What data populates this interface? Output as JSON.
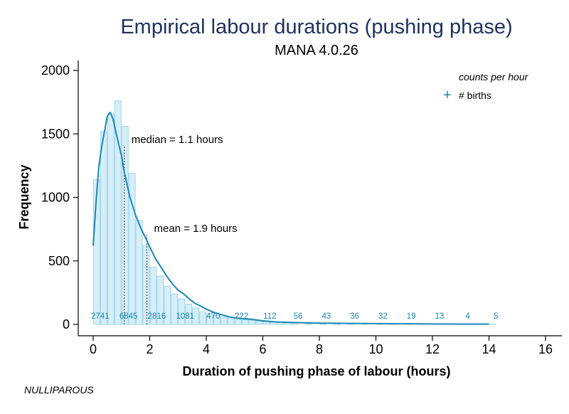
{
  "chart_data": {
    "type": "bar",
    "title": "Empirical labour durations (pushing phase)",
    "subtitle": "MANA 4.0.26",
    "xlabel": "Duration of pushing phase of labour (hours)",
    "ylabel": "Frequency",
    "xlim": [
      0,
      16
    ],
    "ylim": [
      0,
      2000
    ],
    "xticks": [
      0,
      2,
      4,
      6,
      8,
      10,
      12,
      14,
      16
    ],
    "yticks": [
      0,
      500,
      1000,
      1500,
      2000
    ],
    "grid": false,
    "legend": {
      "placement": "top-right",
      "title": "counts per hour",
      "entries": [
        {
          "marker": "+",
          "label": "# births"
        }
      ]
    },
    "histogram": {
      "bin_width": 0.25,
      "bin_starts": [
        0,
        0.25,
        0.5,
        0.75,
        1.0,
        1.25,
        1.5,
        1.75,
        2.0,
        2.25,
        2.5,
        2.75,
        3.0,
        3.25,
        3.5,
        3.75,
        4.0,
        4.25,
        4.5,
        4.75,
        5.0,
        5.25,
        5.5,
        5.75,
        6.0,
        6.25,
        6.5,
        6.75,
        7.0,
        7.5,
        8.0,
        8.5,
        9.0,
        9.5,
        10.0,
        10.5,
        11.0,
        11.5,
        12.0,
        12.5,
        13.0,
        13.5,
        14.0
      ],
      "values": [
        1140,
        1520,
        1660,
        1760,
        1560,
        1190,
        820,
        620,
        450,
        380,
        300,
        240,
        200,
        160,
        130,
        100,
        85,
        70,
        60,
        50,
        40,
        35,
        30,
        25,
        20,
        18,
        15,
        12,
        10,
        9,
        8,
        7,
        6,
        6,
        5,
        5,
        4,
        4,
        3,
        3,
        3,
        2,
        2
      ]
    },
    "series": [
      {
        "name": "density",
        "type": "line",
        "x": [
          0,
          0.1,
          0.2,
          0.3,
          0.4,
          0.5,
          0.6,
          0.7,
          0.8,
          0.9,
          1.0,
          1.1,
          1.2,
          1.3,
          1.5,
          1.7,
          1.9,
          2.0,
          2.2,
          2.4,
          2.6,
          2.8,
          3.0,
          3.2,
          3.4,
          3.6,
          3.8,
          4.0,
          4.2,
          4.4,
          4.6,
          4.8,
          5.0,
          5.3,
          5.6,
          6.0,
          6.3,
          6.6,
          7.0,
          7.5,
          8.0,
          8.5,
          9.0,
          9.5,
          10.0,
          10.5,
          11.0,
          11.5,
          12.0,
          12.5,
          13.0,
          13.5,
          14.0
        ],
        "values": [
          620,
          960,
          1240,
          1400,
          1520,
          1640,
          1670,
          1620,
          1520,
          1420,
          1330,
          1200,
          1100,
          1000,
          860,
          750,
          660,
          610,
          520,
          450,
          380,
          320,
          270,
          240,
          200,
          165,
          145,
          120,
          100,
          85,
          72,
          60,
          52,
          45,
          40,
          28,
          22,
          18,
          15,
          12,
          10,
          9,
          8,
          7,
          6,
          5,
          5,
          4,
          3,
          3,
          2,
          2,
          2
        ]
      }
    ],
    "counts_per_hour": {
      "x": [
        0,
        1,
        2,
        3,
        4,
        5,
        6,
        7,
        8,
        9,
        10,
        11,
        12,
        13,
        14
      ],
      "labels": [
        "2741",
        "6845",
        "2816",
        "1081",
        "470",
        "222",
        "112",
        "56",
        "43",
        "36",
        "32",
        "19",
        "13",
        "4",
        "5"
      ]
    },
    "annotations": [
      {
        "text": "median =  1.1 hours",
        "x": 1.1,
        "y": 1400
      },
      {
        "text": "mean =  1.9 hours",
        "x": 1.9,
        "y": 700
      }
    ],
    "footnote": "NULLIPAROUS",
    "colors": {
      "line": "#1b87b5",
      "bar_fill": "#d6eef8",
      "bar_edge": "#9fd6ee",
      "count_label": "#1b87b5",
      "title": "#1f3260"
    }
  }
}
